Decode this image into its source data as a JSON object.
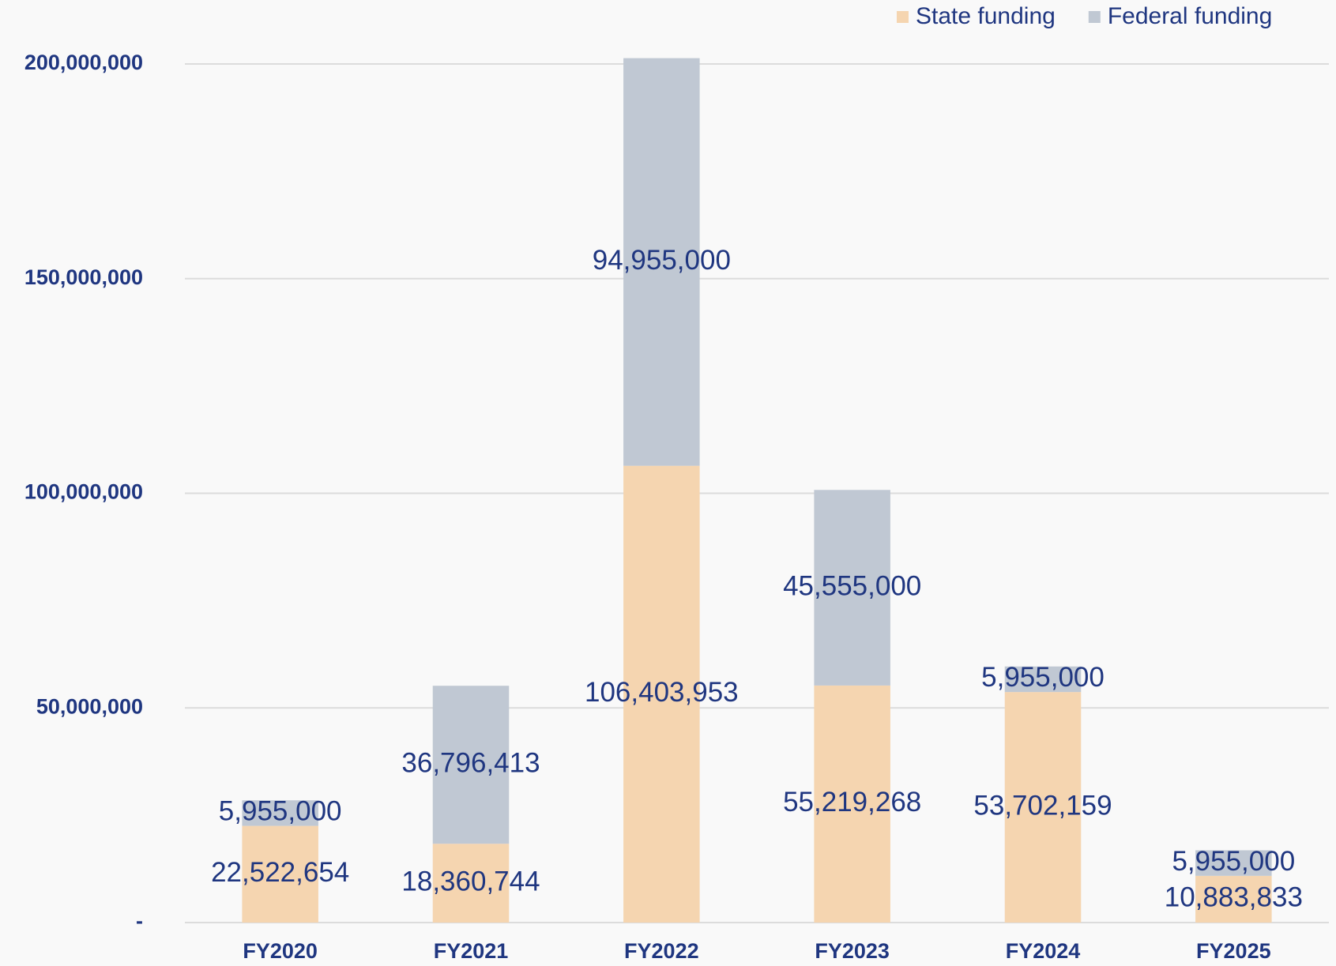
{
  "chart_data": {
    "type": "stacked_bar",
    "categories": [
      "FY2020",
      "FY2021",
      "FY2022",
      "FY2023",
      "FY2024",
      "FY2025"
    ],
    "series": [
      {
        "name": "State funding",
        "color": "#f5d5b0",
        "values": [
          22522654,
          18360744,
          106403953,
          55219268,
          53702159,
          10883833
        ],
        "value_labels": [
          "22,522,654",
          "18,360,744",
          "106,403,953",
          "55,219,268",
          "53,702,159",
          "10,883,833"
        ]
      },
      {
        "name": "Federal funding",
        "color": "#c0c8d3",
        "values": [
          5955000,
          36796413,
          94955000,
          45555000,
          5955000,
          5955000
        ],
        "value_labels": [
          "5,955,000",
          "36,796,413",
          "94,955,000",
          "45,555,000",
          "5,955,000",
          "5,955,000"
        ]
      }
    ],
    "ylim": [
      0,
      200000000
    ],
    "yticks": [
      {
        "value": 0,
        "label": "-"
      },
      {
        "value": 50000000,
        "label": "50,000,000"
      },
      {
        "value": 100000000,
        "label": "100,000,000"
      },
      {
        "value": 150000000,
        "label": "150,000,000"
      },
      {
        "value": 200000000,
        "label": "200,000,000"
      }
    ],
    "grid": true,
    "legend": "top-right"
  }
}
